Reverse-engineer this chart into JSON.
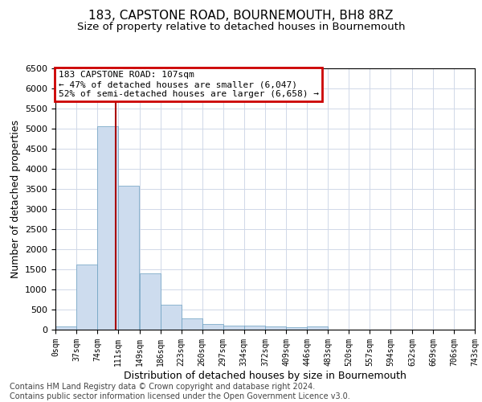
{
  "title": "183, CAPSTONE ROAD, BOURNEMOUTH, BH8 8RZ",
  "subtitle": "Size of property relative to detached houses in Bournemouth",
  "xlabel": "Distribution of detached houses by size in Bournemouth",
  "ylabel": "Number of detached properties",
  "bin_width": 37,
  "bin_starts": [
    0,
    37,
    74,
    111,
    149,
    186,
    223,
    260,
    297,
    334,
    372,
    409,
    446,
    483,
    520,
    557,
    594,
    632,
    669,
    706
  ],
  "bin_labels": [
    "0sqm",
    "37sqm",
    "74sqm",
    "111sqm",
    "149sqm",
    "186sqm",
    "223sqm",
    "260sqm",
    "297sqm",
    "334sqm",
    "372sqm",
    "409sqm",
    "446sqm",
    "483sqm",
    "520sqm",
    "557sqm",
    "594sqm",
    "632sqm",
    "669sqm",
    "706sqm",
    "743sqm"
  ],
  "bar_heights": [
    75,
    1625,
    5050,
    3575,
    1400,
    615,
    290,
    150,
    105,
    110,
    80,
    60,
    75,
    0,
    0,
    0,
    0,
    0,
    0,
    0
  ],
  "bar_color": "#cddcee",
  "bar_edge_color": "#6a9ec0",
  "grid_color": "#d0d8e8",
  "property_line_x": 107,
  "property_line_color": "#aa0000",
  "ylim": [
    0,
    6500
  ],
  "xlim": [
    0,
    743
  ],
  "annotation_text": "183 CAPSTONE ROAD: 107sqm\n← 47% of detached houses are smaller (6,047)\n52% of semi-detached houses are larger (6,658) →",
  "annotation_box_color": "#cc0000",
  "footer_line1": "Contains HM Land Registry data © Crown copyright and database right 2024.",
  "footer_line2": "Contains public sector information licensed under the Open Government Licence v3.0.",
  "title_fontsize": 11,
  "subtitle_fontsize": 9.5,
  "annotation_fontsize": 8,
  "footer_fontsize": 7,
  "ylabel_fontsize": 9,
  "xlabel_fontsize": 9
}
